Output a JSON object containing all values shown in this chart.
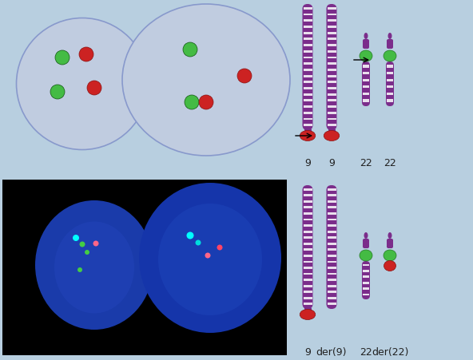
{
  "bg_color": "#b8cfe0",
  "purple": "#7b2d8b",
  "white_band": "#ffffff",
  "red_dot": "#cc2222",
  "green_dot": "#44bb44",
  "cell_fill": "#c0cce0",
  "cell_edge": "#9aaac8",
  "label_color": "#222222",
  "top_labels": [
    "9",
    "9",
    "22",
    "22"
  ],
  "bot_labels": [
    "9",
    "der(9)",
    "22",
    "der(22)"
  ],
  "fig_w": 5.92,
  "fig_h": 4.51,
  "dpi": 100
}
